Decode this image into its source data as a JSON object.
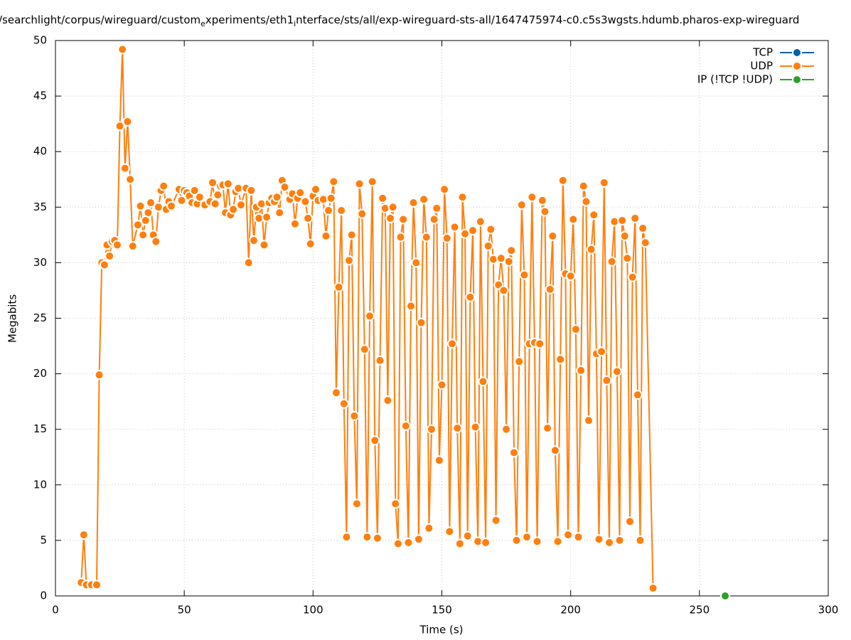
{
  "chart_data": {
    "type": "line",
    "title": [
      "/searchlight/corpus/wireguard/custom",
      "e",
      "xperiments/eth1",
      "i",
      "nterface/sts/all/exp-wireguard-sts-all/1647475974-c0.c5s3wgsts.hdumb.pharos-exp-wireguard"
    ],
    "xlabel": "Time (s)",
    "ylabel": "Megabits",
    "xlim": [
      0,
      300
    ],
    "ylim": [
      0,
      50
    ],
    "xticks": [
      0,
      50,
      100,
      150,
      200,
      250,
      300
    ],
    "yticks": [
      0,
      5,
      10,
      15,
      20,
      25,
      30,
      35,
      40,
      45,
      50
    ],
    "grid": true,
    "legend": "top-right",
    "series": [
      {
        "name": "TCP",
        "color": "#0060ad",
        "x": [],
        "values": []
      },
      {
        "name": "UDP",
        "color": "#ff7f0e",
        "x": [
          10,
          11,
          12,
          14,
          16,
          17,
          18,
          19,
          20,
          21,
          22,
          23,
          24,
          25,
          26,
          27,
          28,
          29,
          30,
          32,
          33,
          34,
          35,
          36,
          37,
          38,
          39,
          40,
          41,
          42,
          43,
          44,
          45,
          48,
          49,
          50,
          51,
          52,
          53,
          54,
          55,
          56,
          58,
          60,
          61,
          62,
          63,
          64,
          65,
          66,
          67,
          68,
          69,
          70,
          71,
          72,
          74,
          75,
          76,
          77,
          78,
          79,
          80,
          81,
          82,
          83,
          84,
          85,
          86,
          87,
          88,
          89,
          91,
          92,
          93,
          94,
          95,
          97,
          98,
          99,
          100,
          101,
          102,
          104,
          105,
          106,
          107,
          108,
          109,
          110,
          111,
          112,
          113,
          114,
          115,
          116,
          117,
          118,
          119,
          120,
          121,
          122,
          123,
          124,
          125,
          126,
          127,
          128,
          129,
          130,
          131,
          132,
          133,
          134,
          135,
          136,
          137,
          138,
          139,
          140,
          141,
          142,
          143,
          144,
          145,
          146,
          147,
          148,
          149,
          150,
          151,
          152,
          153,
          154,
          155,
          156,
          157,
          158,
          159,
          160,
          161,
          162,
          163,
          164,
          165,
          166,
          167,
          168,
          169,
          170,
          171,
          172,
          173,
          174,
          175,
          176,
          177,
          178,
          179,
          180,
          181,
          182,
          183,
          184,
          185,
          186,
          187,
          188,
          189,
          190,
          191,
          192,
          193,
          194,
          195,
          196,
          197,
          198,
          199,
          200,
          201,
          202,
          203,
          204,
          205,
          206,
          207,
          208,
          209,
          210,
          211,
          212,
          213,
          214,
          215,
          216,
          217,
          218,
          219,
          220,
          221,
          222,
          223,
          224,
          225,
          226,
          227,
          228,
          229,
          232
        ],
        "values": [
          1.2,
          5.5,
          1.0,
          1.0,
          1.0,
          19.9,
          30.0,
          29.8,
          31.6,
          30.6,
          31.9,
          32.0,
          31.6,
          42.3,
          49.2,
          38.5,
          42.7,
          37.5,
          31.5,
          33.4,
          35.1,
          32.5,
          33.8,
          34.5,
          35.4,
          32.5,
          31.9,
          35.0,
          36.5,
          36.9,
          34.8,
          35.5,
          35.1,
          36.6,
          35.6,
          36.5,
          36.3,
          36.0,
          35.4,
          36.5,
          35.3,
          35.9,
          35.2,
          35.5,
          37.2,
          35.3,
          36.1,
          36.9,
          37.0,
          34.5,
          37.1,
          34.3,
          34.8,
          36.4,
          36.7,
          35.2,
          36.7,
          30.0,
          36.5,
          32.0,
          35.0,
          34.0,
          35.3,
          31.6,
          34.1,
          35.4,
          35.8,
          35.5,
          35.9,
          34.5,
          37.4,
          36.8,
          35.7,
          36.2,
          33.5,
          35.8,
          36.3,
          35.5,
          34.0,
          31.7,
          36.0,
          36.6,
          35.6,
          35.7,
          32.4,
          34.7,
          35.8,
          37.3,
          18.3,
          27.8,
          34.7,
          17.3,
          5.3,
          30.2,
          32.5,
          16.2,
          8.3,
          37.1,
          34.4,
          22.2,
          5.3,
          25.2,
          37.3,
          14.0,
          5.2,
          21.2,
          35.8,
          34.9,
          17.6,
          34.0,
          35.0,
          8.3,
          4.7,
          32.3,
          33.9,
          15.3,
          4.8,
          26.1,
          35.4,
          30.0,
          5.1,
          24.6,
          35.7,
          32.3,
          6.1,
          15.0,
          33.9,
          34.9,
          12.2,
          19.0,
          36.6,
          32.2,
          5.8,
          22.7,
          33.2,
          15.1,
          4.7,
          35.9,
          32.6,
          5.4,
          26.9,
          32.9,
          15.2,
          4.9,
          33.7,
          19.3,
          4.8,
          31.5,
          33.0,
          30.3,
          6.8,
          28.0,
          30.4,
          27.5,
          15.0,
          30.1,
          31.1,
          12.9,
          5.0,
          21.1,
          35.2,
          28.9,
          5.3,
          22.7,
          35.9,
          22.8,
          4.9,
          22.7,
          35.6,
          34.6,
          15.1,
          27.6,
          32.4,
          13.1,
          4.9,
          21.3,
          37.4,
          29.0,
          5.5,
          28.8,
          33.9,
          24.0,
          5.3,
          20.3,
          36.9,
          35.5,
          15.8,
          31.2,
          34.3,
          21.8,
          5.1,
          22.0,
          37.2,
          19.4,
          4.8,
          30.1,
          33.7,
          20.2,
          5.0,
          33.8,
          32.4,
          30.4,
          6.7,
          28.7,
          34.0,
          18.1,
          5.0,
          33.1,
          31.8,
          0.7
        ]
      },
      {
        "name": "IP (!TCP  !UDP)",
        "color": "#2ca02c",
        "x": [
          260
        ],
        "values": [
          0
        ]
      }
    ]
  }
}
